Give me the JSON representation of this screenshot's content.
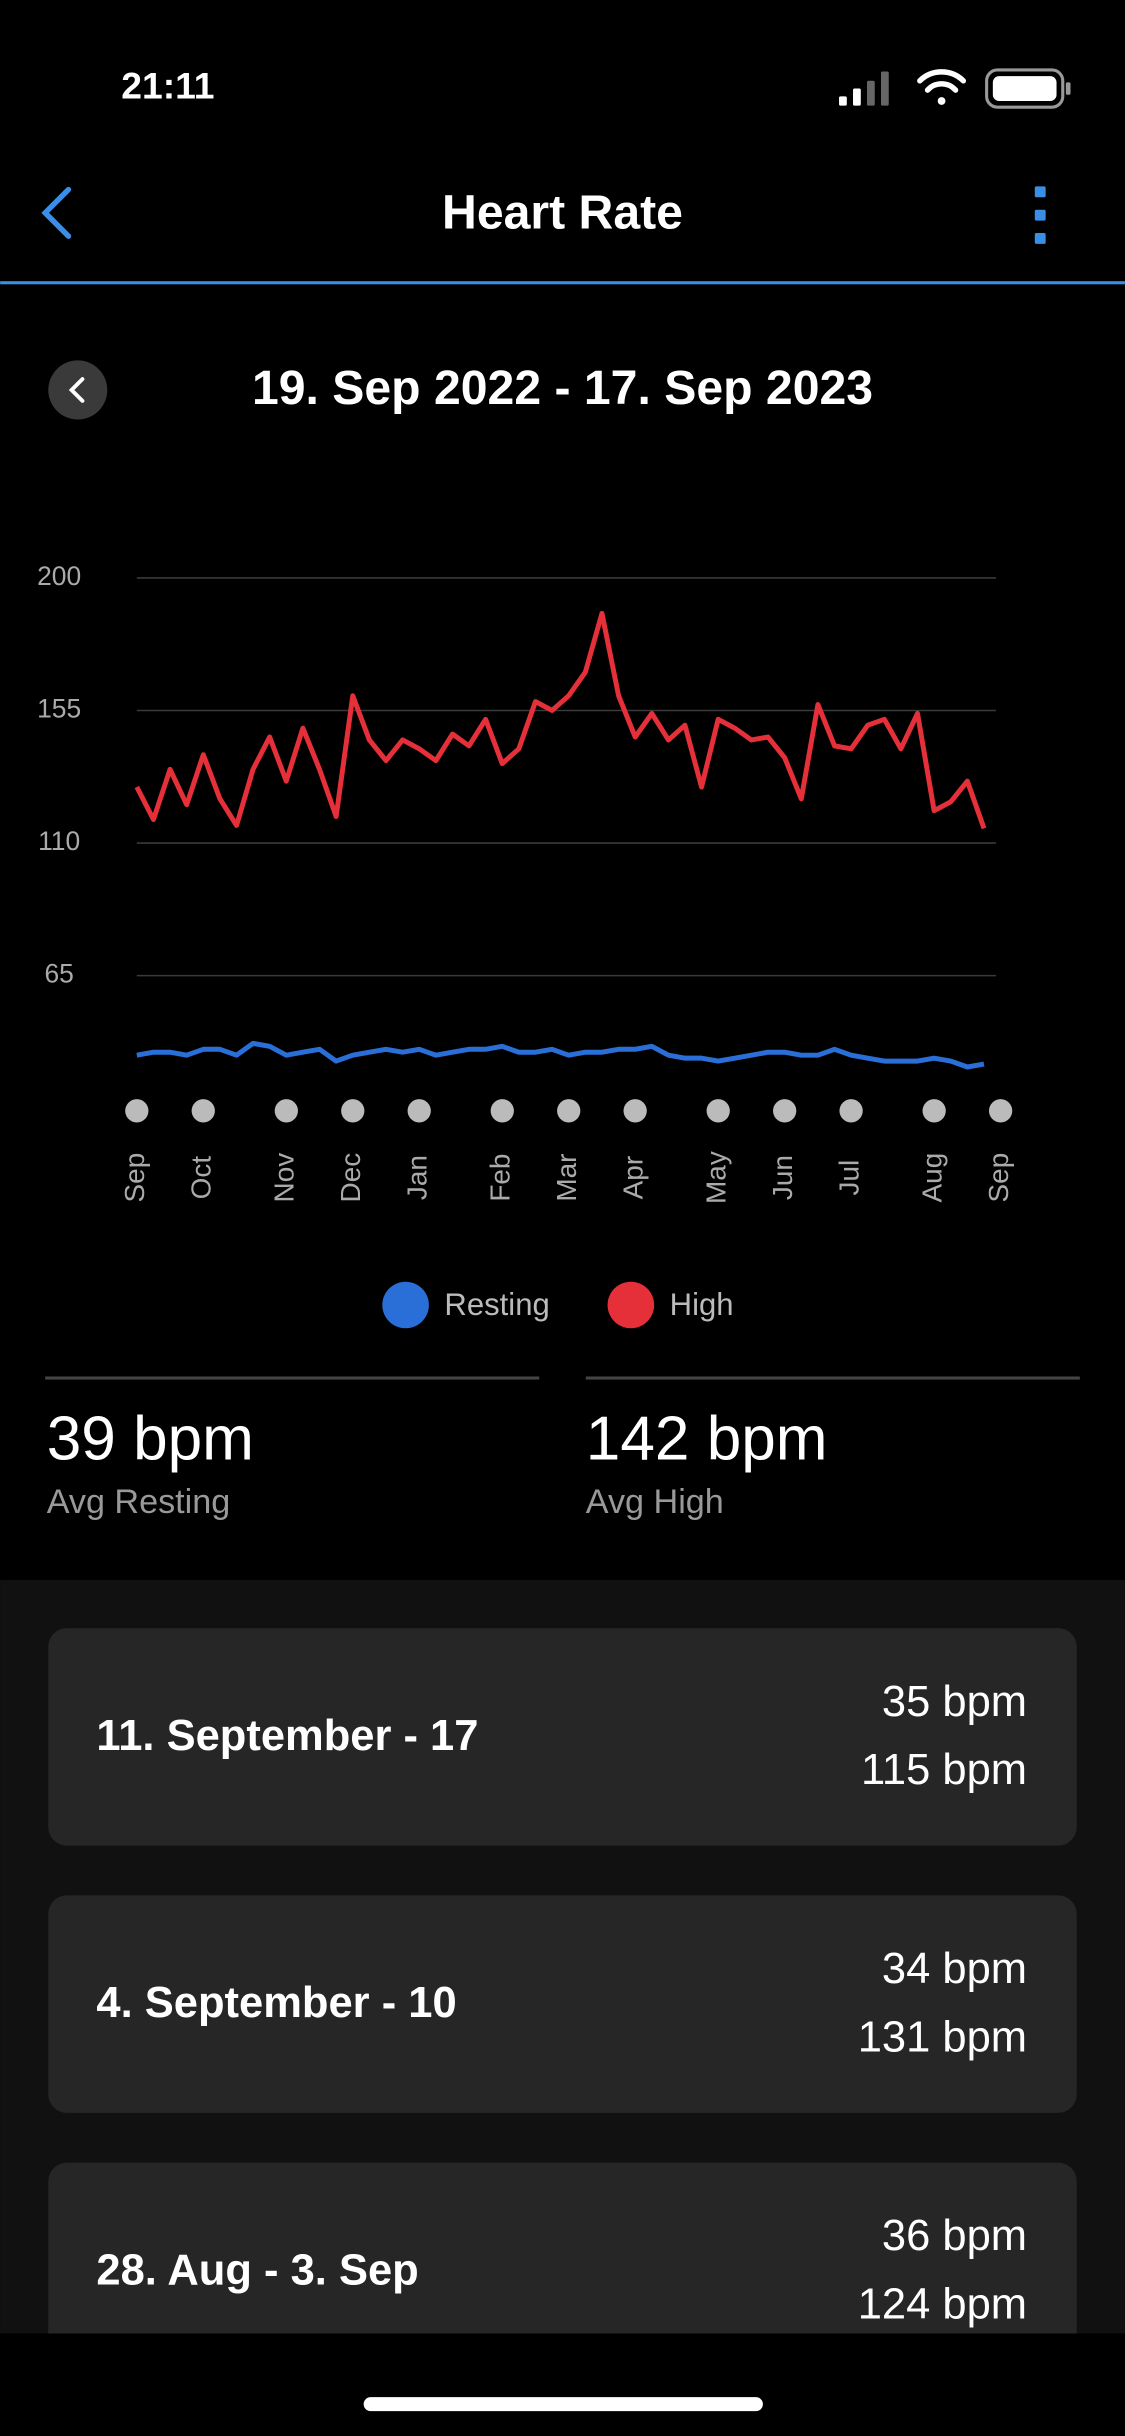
{
  "status_bar": {
    "time": "21:11"
  },
  "header": {
    "title": "Heart Rate"
  },
  "date_range": "19. Sep 2022 - 17. Sep 2023",
  "chart_data": {
    "type": "line",
    "categories": [
      "Sep",
      null,
      null,
      null,
      "Oct",
      null,
      null,
      null,
      null,
      "Nov",
      null,
      null,
      null,
      "Dec",
      null,
      null,
      null,
      "Jan",
      null,
      null,
      null,
      null,
      "Feb",
      null,
      null,
      null,
      "Mar",
      null,
      null,
      null,
      "Apr",
      null,
      null,
      null,
      null,
      "May",
      null,
      null,
      null,
      "Jun",
      null,
      null,
      null,
      "Jul",
      null,
      null,
      null,
      null,
      "Aug",
      null,
      null,
      null,
      "Sep"
    ],
    "series": [
      {
        "name": "Resting",
        "color": "#2a6fd8",
        "values": [
          38,
          39,
          39,
          38,
          40,
          40,
          38,
          42,
          41,
          38,
          39,
          40,
          36,
          38,
          39,
          40,
          39,
          40,
          38,
          39,
          40,
          40,
          41,
          39,
          39,
          40,
          38,
          39,
          39,
          40,
          40,
          41,
          38,
          37,
          37,
          36,
          37,
          38,
          39,
          39,
          38,
          38,
          40,
          38,
          37,
          36,
          36,
          36,
          37,
          36,
          34,
          35,
          null
        ]
      },
      {
        "name": "High",
        "color": "#e5303a",
        "values": [
          129,
          118,
          135,
          123,
          140,
          125,
          116,
          135,
          146,
          131,
          149,
          135,
          119,
          160,
          145,
          138,
          145,
          142,
          138,
          147,
          143,
          152,
          137,
          142,
          158,
          155,
          160,
          168,
          188,
          160,
          146,
          154,
          145,
          150,
          129,
          152,
          149,
          145,
          146,
          139,
          125,
          157,
          143,
          142,
          150,
          152,
          142,
          154,
          121,
          124,
          131,
          115,
          null
        ]
      }
    ],
    "ylim": [
      20,
      200
    ],
    "yticks": [
      200,
      155,
      110,
      65
    ],
    "grid": true
  },
  "stats": [
    {
      "value": "39 bpm",
      "label": "Avg Resting"
    },
    {
      "value": "142 bpm",
      "label": "Avg High"
    }
  ],
  "weeks": [
    {
      "label": "11. September - 17",
      "resting": "35 bpm",
      "high": "115 bpm"
    },
    {
      "label": "4. September - 10",
      "resting": "34 bpm",
      "high": "131 bpm"
    },
    {
      "label": "28. Aug - 3. Sep",
      "resting": "36 bpm",
      "high": "124 bpm"
    }
  ]
}
